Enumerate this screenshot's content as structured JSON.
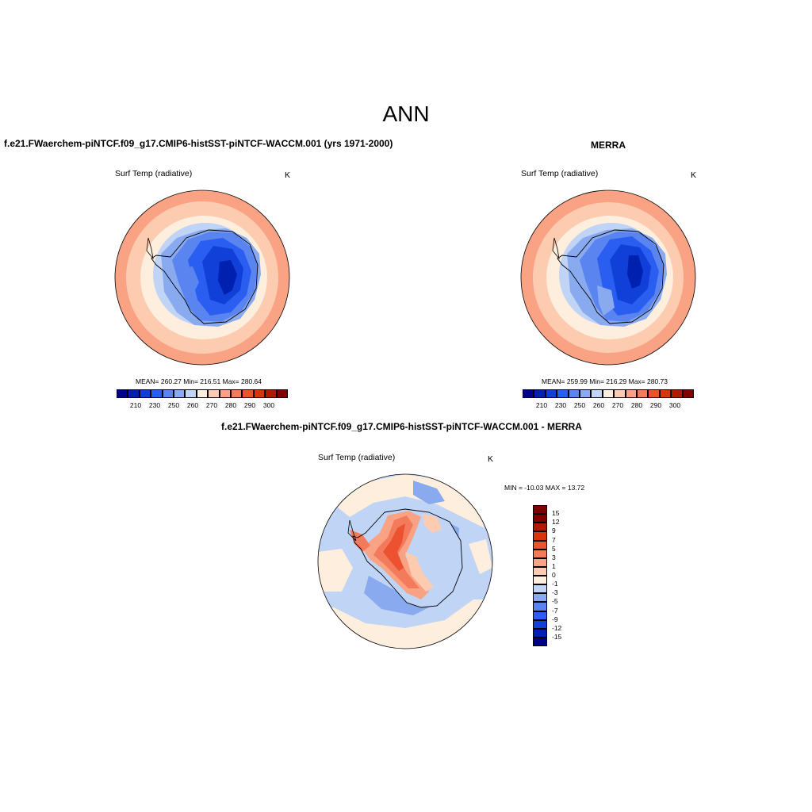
{
  "main_title": "ANN",
  "panels": [
    {
      "title": "f.e21.FWaerchem-piNTCF.f09_g17.CMIP6-histSST-piNTCF-WACCM.001 (yrs 1971-2000)",
      "var_label": "Surf Temp (radiative)",
      "units": "K",
      "stats": "MEAN= 260.27  Min= 216.51  Max= 280.64"
    },
    {
      "title": "MERRA",
      "var_label": "Surf Temp (radiative)",
      "units": "K",
      "stats": "MEAN= 259.99  Min= 216.29  Max= 280.73"
    },
    {
      "title": "f.e21.FWaerchem-piNTCF.f09_g17.CMIP6-histSST-piNTCF-WACCM.001 - MERRA",
      "var_label": "Surf Temp (radiative)",
      "units": "K",
      "stats": "MIN = -10.03 MAX =  13.72"
    }
  ],
  "abs_colorbar": {
    "colors": [
      "#00008b",
      "#0020b0",
      "#1040d8",
      "#2a5ef0",
      "#5a84f0",
      "#8aaaf0",
      "#c0d4f6",
      "#fdeede",
      "#fccbb0",
      "#f9a284",
      "#f37a5a",
      "#ec5230",
      "#d8340f",
      "#b01a00",
      "#800000"
    ],
    "labels": [
      "210",
      "230",
      "250",
      "260",
      "270",
      "280",
      "290",
      "300"
    ]
  },
  "diff_colorbar": {
    "colors": [
      "#800000",
      "#b01a00",
      "#d8340f",
      "#ec5230",
      "#f37a5a",
      "#f9a284",
      "#fccbb0",
      "#fdeede",
      "#c0d4f6",
      "#8aaaf0",
      "#5a84f0",
      "#2a5ef0",
      "#1040d8",
      "#0020b0",
      "#00008b"
    ],
    "labels": [
      "15",
      "12",
      "9",
      "7",
      "5",
      "3",
      "1",
      "0",
      "-1",
      "-3",
      "-5",
      "-7",
      "-9",
      "-12",
      "-15"
    ]
  }
}
